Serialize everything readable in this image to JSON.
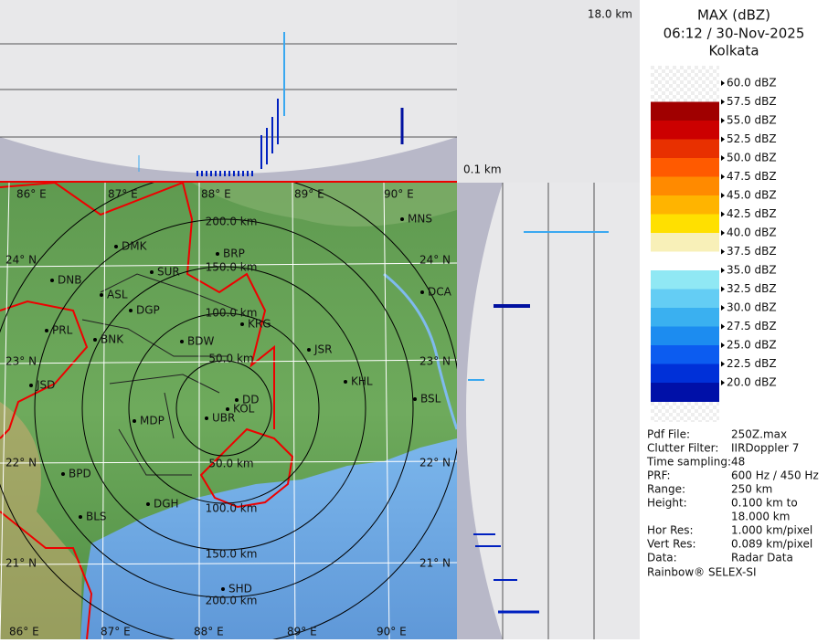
{
  "header": {
    "title": "MAX (dBZ)",
    "datetime": "06:12 / 30-Nov-2025",
    "location": "Kolkata"
  },
  "height_axis": {
    "top": "18.0 km",
    "bottom": "0.1 km"
  },
  "legend": [
    {
      "label": "60.0 dBZ",
      "color": "#f4f4f4"
    },
    {
      "label": "57.5 dBZ",
      "color": "#a00000"
    },
    {
      "label": "55.0 dBZ",
      "color": "#cc0000"
    },
    {
      "label": "52.5 dBZ",
      "color": "#e83000"
    },
    {
      "label": "50.0 dBZ",
      "color": "#ff5a00"
    },
    {
      "label": "47.5 dBZ",
      "color": "#ff8a00"
    },
    {
      "label": "45.0 dBZ",
      "color": "#ffb400"
    },
    {
      "label": "42.5 dBZ",
      "color": "#ffe000"
    },
    {
      "label": "40.0 dBZ",
      "color": "#f8f0b8"
    },
    {
      "label": "37.5 dBZ",
      "color": "#ffffff"
    },
    {
      "label": "35.0 dBZ",
      "color": "#90e8f4"
    },
    {
      "label": "32.5 dBZ",
      "color": "#64cdf4"
    },
    {
      "label": "30.0 dBZ",
      "color": "#3ab0f0"
    },
    {
      "label": "27.5 dBZ",
      "color": "#1c8cf0"
    },
    {
      "label": "25.0 dBZ",
      "color": "#0c5cf0"
    },
    {
      "label": "22.5 dBZ",
      "color": "#0030d8"
    },
    {
      "label": "20.0 dBZ",
      "color": "#0010a8"
    }
  ],
  "info": [
    [
      "Pdf File:",
      "250Z.max"
    ],
    [
      "Clutter Filter:",
      "IIRDoppler 7"
    ],
    [
      "Time sampling:",
      "48"
    ],
    [
      "PRF:",
      "600 Hz / 450 Hz"
    ],
    [
      "Range:",
      "250 km"
    ],
    [
      "Height:",
      "0.100 km to"
    ],
    [
      "",
      "18.000 km"
    ],
    [
      "Hor Res:",
      "1.000 km/pixel"
    ],
    [
      "Vert Res:",
      "0.089 km/pixel"
    ],
    [
      "Data:",
      "Radar Data"
    ]
  ],
  "footer": "Rainbow® SELEX-SI",
  "map": {
    "longitudes": [
      "86° E",
      "87° E",
      "88° E",
      "89° E",
      "90° E"
    ],
    "latitudes": [
      "24° N",
      "23° N",
      "22° N",
      "21° N"
    ],
    "rings_north": [
      "200.0 km",
      "150.0 km",
      "100.0 km",
      "50.0 km"
    ],
    "rings_south": [
      "50.0 km",
      "100.0 km",
      "150.0 km",
      "200.0 km"
    ],
    "cities": [
      "MNS",
      "DMK",
      "BRP",
      "DNB",
      "SUR",
      "ASL",
      "DGP",
      "DCA",
      "KRG",
      "PRL",
      "BNK",
      "BDW",
      "JSR",
      "KHL",
      "JSD",
      "DD",
      "BSL",
      "KOL",
      "MDP",
      "UBR",
      "BPD",
      "DGH",
      "BLS",
      "SHD"
    ]
  }
}
